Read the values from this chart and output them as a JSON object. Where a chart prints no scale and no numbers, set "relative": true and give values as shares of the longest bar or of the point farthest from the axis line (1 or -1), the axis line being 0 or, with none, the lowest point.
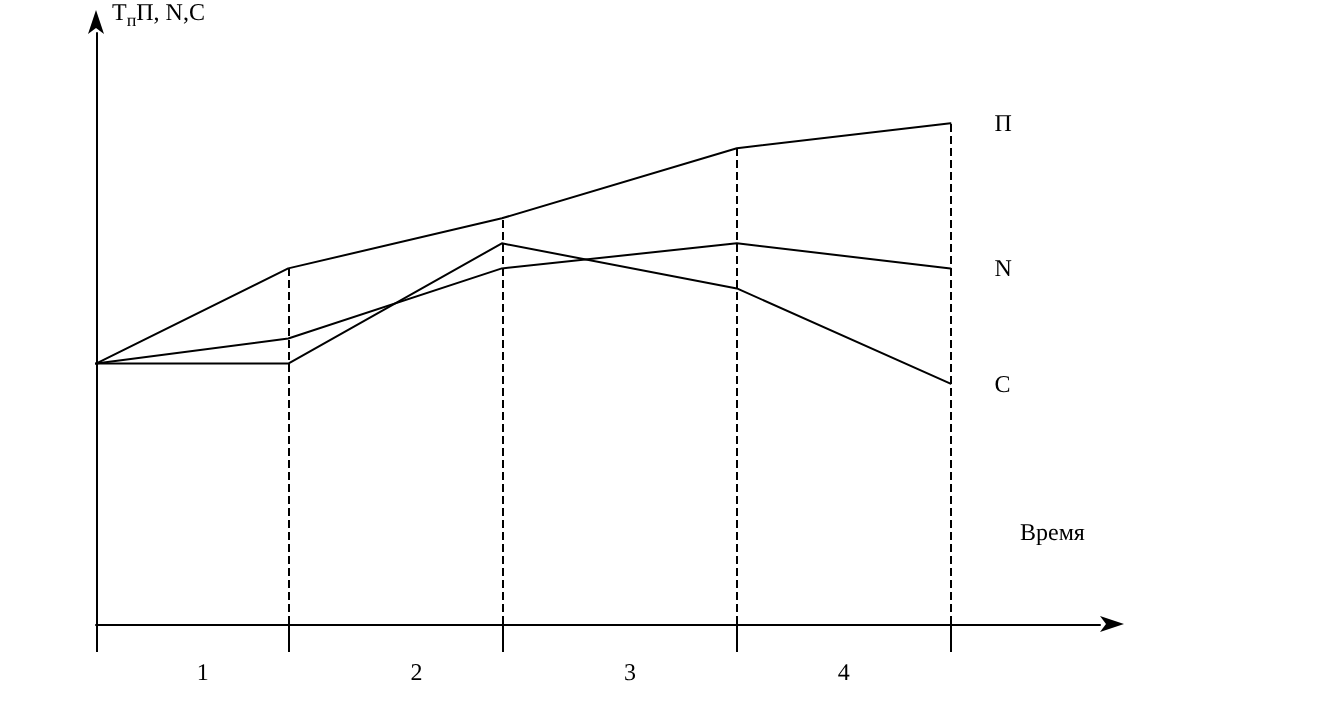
{
  "chart_data": {
    "type": "line",
    "relative": true,
    "ylabel": "Т$_{п}$П, N,С",
    "xlabel": "Время",
    "x": [
      0.5,
      1.4,
      2.4,
      3.5,
      4.5
    ],
    "xlim": [
      0.5,
      5.2
    ],
    "xticks": [
      {
        "value": 0.5,
        "label": null
      },
      {
        "value": 1,
        "label": "1"
      },
      {
        "value": 1.4,
        "label": null
      },
      {
        "value": 2,
        "label": "2"
      },
      {
        "value": 2.4,
        "label": null
      },
      {
        "value": 3,
        "label": "3"
      },
      {
        "value": 3.5,
        "label": null
      },
      {
        "value": 4,
        "label": "4"
      },
      {
        "value": 4.5,
        "label": null
      }
    ],
    "tick_labels": "x",
    "series": [
      {
        "name": "П",
        "color": "#000000",
        "values": [
          0.52,
          0.71,
          0.81,
          0.95,
          1
        ]
      },
      {
        "name": "N",
        "color": "#000000",
        "values": [
          0.52,
          0.57,
          0.71,
          0.76,
          0.71
        ]
      },
      {
        "name": "С",
        "color": "#000000",
        "values": [
          0.52,
          0.52,
          0.76,
          0.67,
          0.48
        ]
      }
    ],
    "ref_lines": [
      {
        "axis": "x",
        "value": 1.4,
        "color": "#000000",
        "line_style": "dashed"
      },
      {
        "axis": "x",
        "value": 2.4,
        "color": "#000000",
        "line_style": "dashed"
      },
      {
        "axis": "x",
        "value": 3.5,
        "color": "#000000",
        "line_style": "dashed"
      },
      {
        "axis": "x",
        "value": 4.5,
        "color": "#000000",
        "line_style": "dashed"
      }
    ],
    "grid": false,
    "legend": false,
    "marker": "none",
    "line_style": "solid"
  }
}
